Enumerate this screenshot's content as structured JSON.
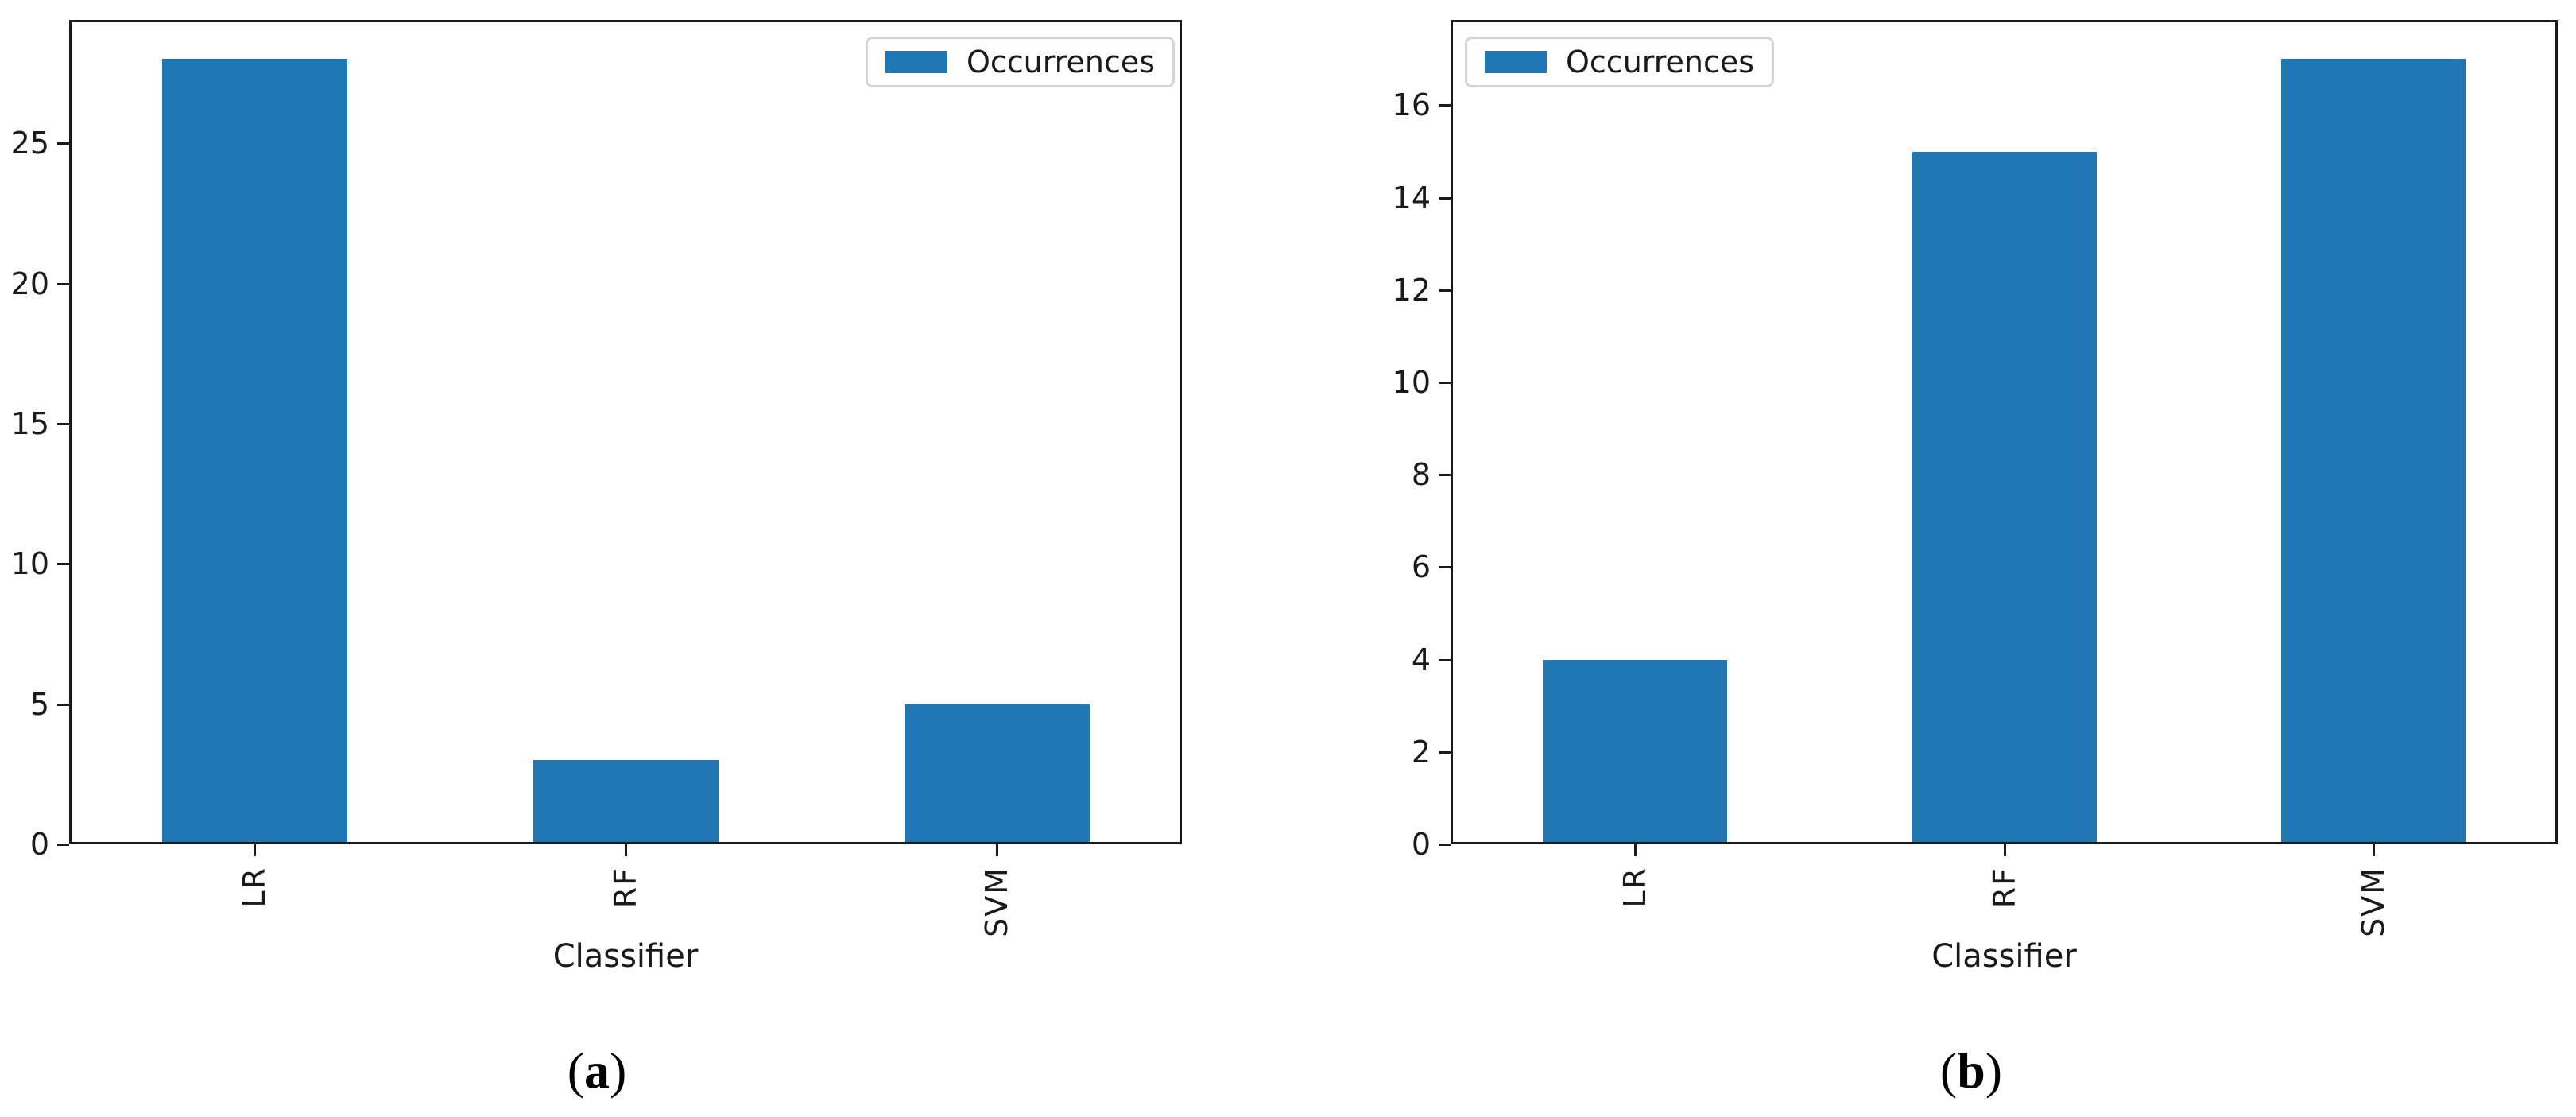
{
  "colors": {
    "bar": "#2177b4",
    "axis": "#1a1a1a",
    "text": "#1a1a1a",
    "legend_border": "#d5d5d5",
    "background": "#ffffff"
  },
  "chart_data": [
    {
      "id": "a",
      "type": "bar",
      "categories": [
        "LR",
        "RF",
        "SVM"
      ],
      "values": [
        28,
        3,
        5
      ],
      "xlabel": "Classifier",
      "ylabel": "",
      "legend": "Occurrences",
      "legend_position": "upper right",
      "yticks": [
        0,
        5,
        10,
        15,
        20,
        25
      ],
      "ylim": [
        0,
        29.4
      ],
      "grid": false,
      "caption_prefix": "(",
      "caption_letter": "a",
      "caption_suffix": ")"
    },
    {
      "id": "b",
      "type": "bar",
      "categories": [
        "LR",
        "RF",
        "SVM"
      ],
      "values": [
        4,
        15,
        17
      ],
      "xlabel": "Classifier",
      "ylabel": "",
      "legend": "Occurrences",
      "legend_position": "upper left",
      "yticks": [
        0,
        2,
        4,
        6,
        8,
        10,
        12,
        14,
        16
      ],
      "ylim": [
        0,
        17.85
      ],
      "grid": false,
      "caption_prefix": "(",
      "caption_letter": "b",
      "caption_suffix": ")"
    }
  ]
}
